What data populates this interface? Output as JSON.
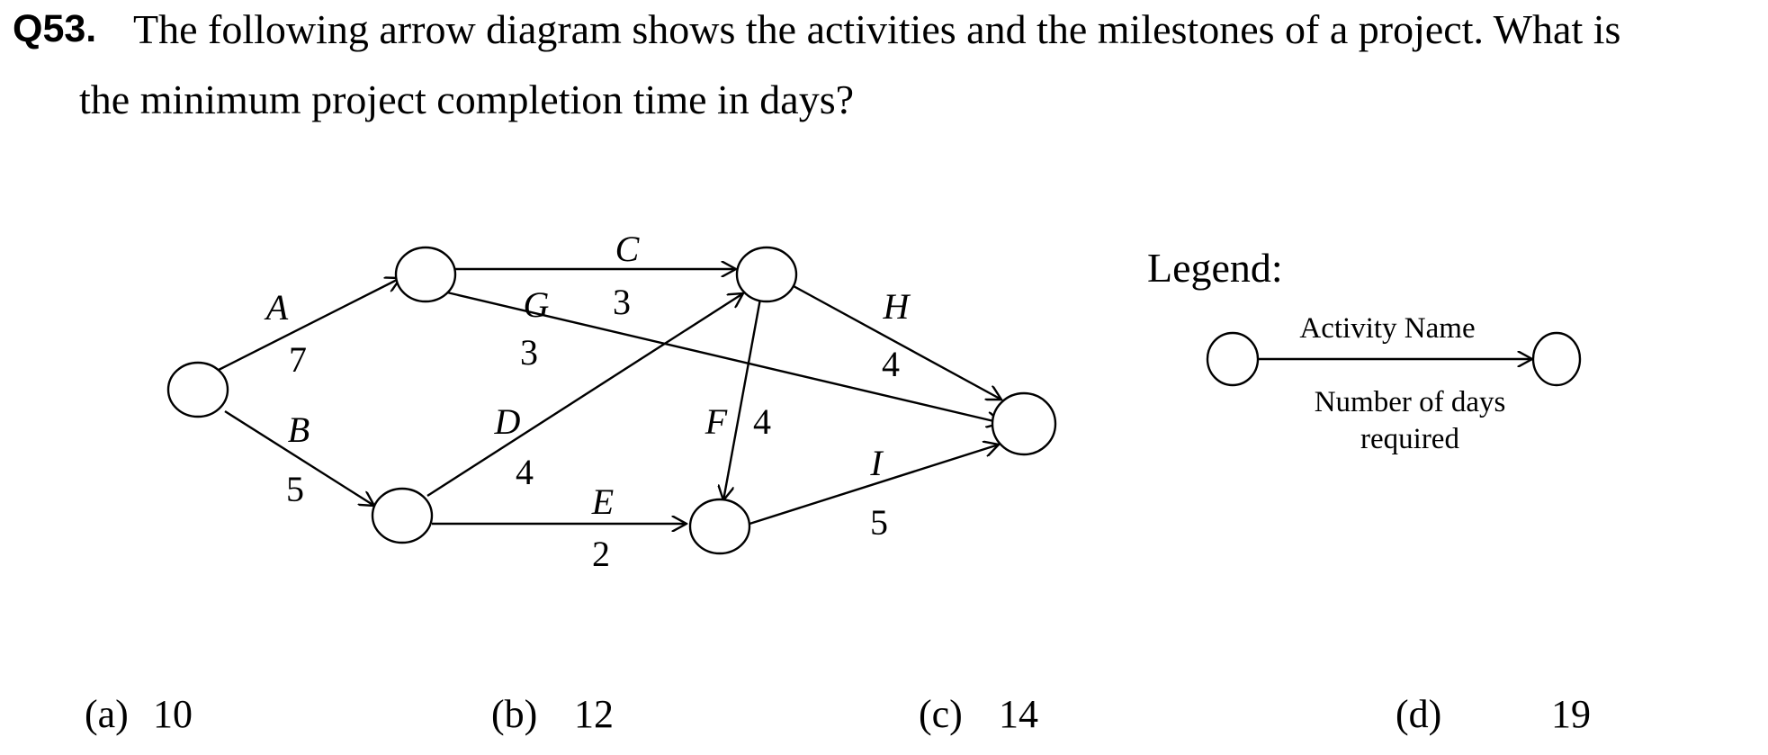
{
  "question": {
    "number": "Q53.",
    "text_line1": "The following arrow diagram shows the activities and the milestones of a project. What is",
    "text_line2": "the minimum project completion time in days?"
  },
  "diagram": {
    "activities": [
      {
        "id": "A",
        "name": "A",
        "days": "7"
      },
      {
        "id": "B",
        "name": "B",
        "days": "5"
      },
      {
        "id": "C",
        "name": "C",
        "days": "3"
      },
      {
        "id": "G",
        "name": "G",
        "days": "3"
      },
      {
        "id": "D",
        "name": "D",
        "days": "4"
      },
      {
        "id": "E",
        "name": "E",
        "days": "2"
      },
      {
        "id": "F",
        "name": "F",
        "days": "4"
      },
      {
        "id": "H",
        "name": "H",
        "days": "4"
      },
      {
        "id": "I",
        "name": "I",
        "days": "5"
      }
    ]
  },
  "legend": {
    "title": "Legend:",
    "activity_label": "Activity Name",
    "days_label_line1": "Number of days",
    "days_label_line2": "required"
  },
  "options": [
    {
      "label": "(a)",
      "value": "10"
    },
    {
      "label": "(b)",
      "value": "12"
    },
    {
      "label": "(c)",
      "value": "14"
    },
    {
      "label": "(d)",
      "value": "19"
    }
  ]
}
